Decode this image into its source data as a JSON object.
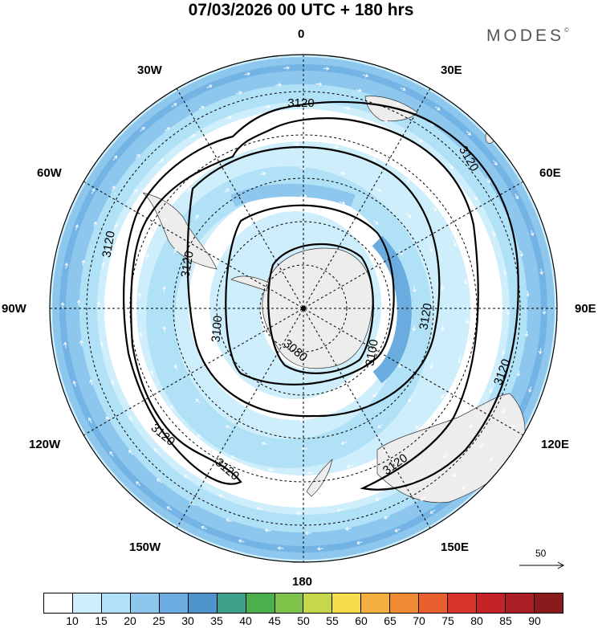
{
  "title": "07/03/2026  00 UTC  + 180 hrs",
  "brand": "MODES",
  "brand_mark": "©",
  "longitude_labels": {
    "n": "0",
    "n30e": "30E",
    "n60e": "60E",
    "e90": "90E",
    "s120e": "120E",
    "s150e": "150E",
    "s": "180",
    "s150w": "150W",
    "s120w": "120W",
    "w90": "90W",
    "n60w": "60W",
    "n30w": "30W"
  },
  "contour_labels": [
    "3120",
    "3120",
    "3120",
    "3120",
    "3120",
    "3120",
    "3120",
    "3120",
    "3120",
    "3100",
    "3100",
    "3080"
  ],
  "vector_reference": "50",
  "colorbar": {
    "colors": [
      "#ffffff",
      "#cfeefb",
      "#b0e1f7",
      "#8ec7ee",
      "#6aacdf",
      "#4f93cb",
      "#3da08a",
      "#4bb04b",
      "#7ec24a",
      "#c6d84a",
      "#f5dc4a",
      "#f3b040",
      "#ef8a33",
      "#e8602d",
      "#d8342c",
      "#c42226",
      "#a91f23",
      "#8a1a1c"
    ],
    "labels": [
      "10",
      "15",
      "20",
      "25",
      "30",
      "35",
      "40",
      "45",
      "50",
      "55",
      "60",
      "65",
      "70",
      "75",
      "80",
      "85",
      "90"
    ]
  },
  "icons": [
    "direction-arrow-icon",
    "pole-marker-icon"
  ]
}
